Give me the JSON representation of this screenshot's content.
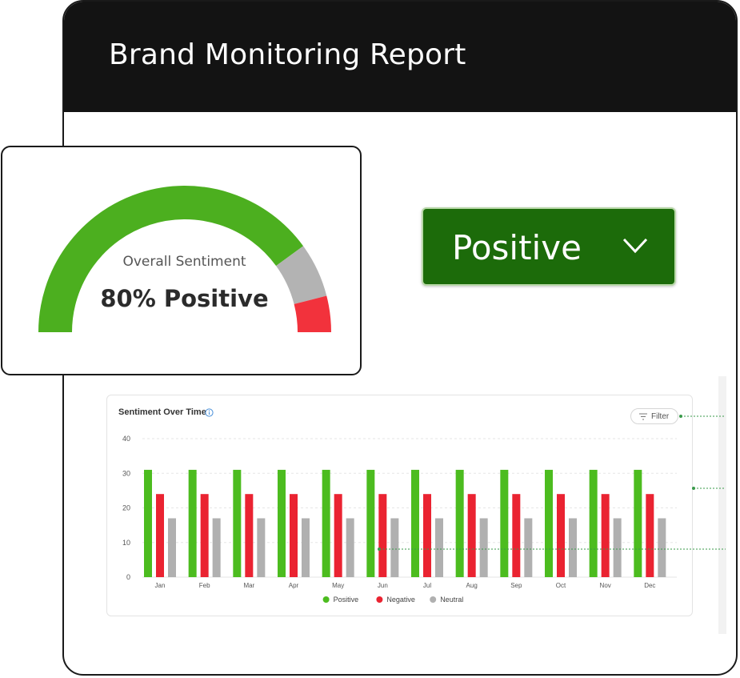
{
  "report": {
    "title": "Brand Monitoring Report"
  },
  "gauge": {
    "label": "Overall Sentiment",
    "value_text": "80% Positive",
    "segments": [
      {
        "name": "positive",
        "fraction": 0.8,
        "color": "#4caf1f"
      },
      {
        "name": "neutral",
        "fraction": 0.12,
        "color": "#b3b3b3"
      },
      {
        "name": "negative",
        "fraction": 0.08,
        "color": "#f2323c"
      }
    ]
  },
  "sentiment_select": {
    "value": "Positive",
    "icon": "chevron-down-icon"
  },
  "chart": {
    "title": "Sentiment Over Time",
    "info_icon": "info-icon",
    "filter_label": "Filter",
    "filter_icon": "filter-icon"
  },
  "chart_data": {
    "type": "bar",
    "title": "Sentiment Over Time",
    "categories": [
      "Jan",
      "Feb",
      "Mar",
      "Apr",
      "May",
      "Jun",
      "Jul",
      "Aug",
      "Sep",
      "Oct",
      "Nov",
      "Dec"
    ],
    "series": [
      {
        "name": "Positive",
        "color": "#4cbc1f",
        "values": [
          31,
          31,
          31,
          31,
          31,
          31,
          31,
          31,
          31,
          31,
          31,
          31
        ]
      },
      {
        "name": "Negative",
        "color": "#ea2331",
        "values": [
          24,
          24,
          24,
          24,
          24,
          24,
          24,
          24,
          24,
          24,
          24,
          24
        ]
      },
      {
        "name": "Neutral",
        "color": "#b0b0b0",
        "values": [
          17,
          17,
          17,
          17,
          17,
          17,
          17,
          17,
          17,
          17,
          17,
          17
        ]
      }
    ],
    "yticks": [
      0,
      10,
      20,
      30,
      40
    ],
    "ylim": [
      0,
      40
    ],
    "grid": true,
    "legend": "bottom-center"
  }
}
